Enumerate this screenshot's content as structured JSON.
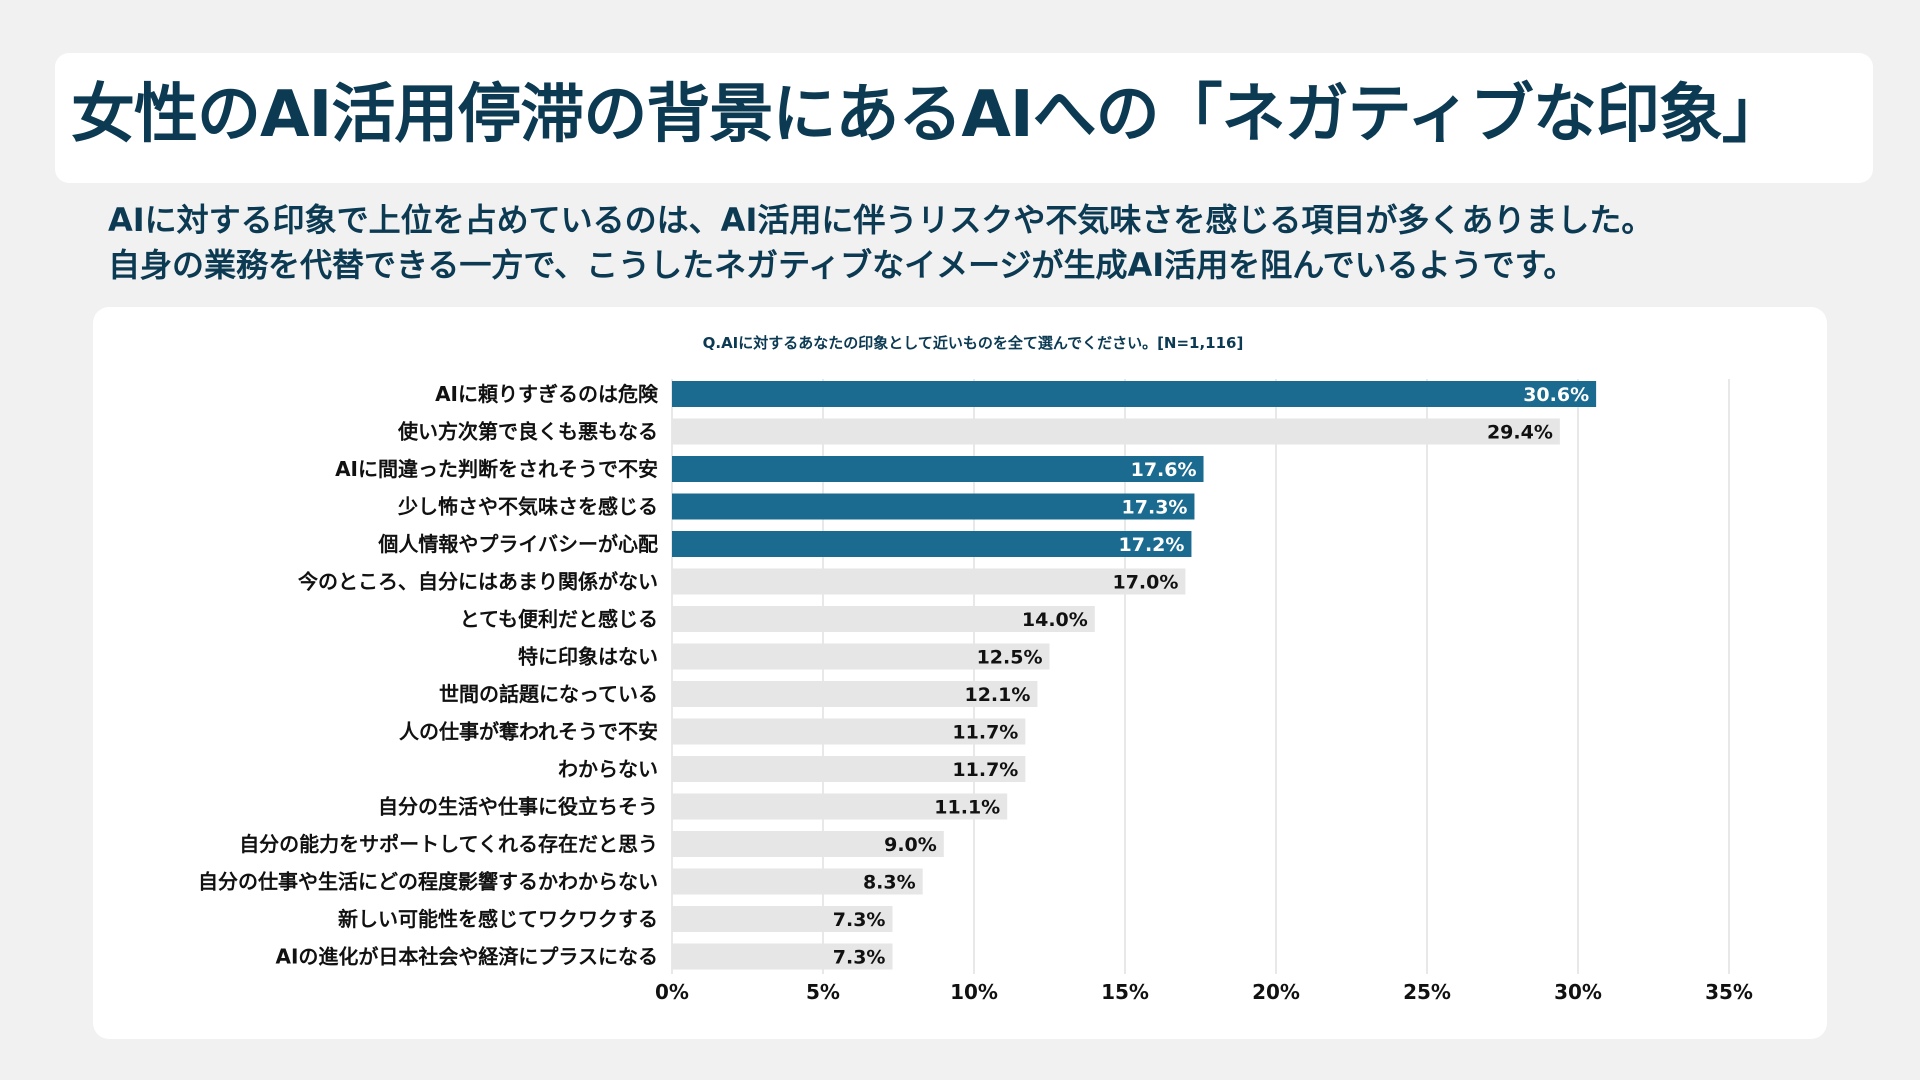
{
  "header": {
    "title": "女性のAI活用停滞の背景にあるAIへの「ネガティブな印象」"
  },
  "subtitle": {
    "line1": "AIに対する印象で上位を占めているのは、AI活用に伴うリスクや不気味さを感じる項目が多くありました。",
    "line2": "自身の業務を代替できる一方で、こうしたネガティブなイメージが生成AI活用を阻んでいるようです。"
  },
  "colors": {
    "title": "#0b3a52",
    "highlight_bar": "#1b6a8f",
    "normal_bar": "#e6e6e6",
    "gridline": "#d9d9d9",
    "page_background": "#f1f1f1",
    "card_background": "#ffffff"
  },
  "chart_data": {
    "type": "bar",
    "orientation": "horizontal",
    "title": "Q.AIに対するあなたの印象として近いものを全て選んでください。[N=1,116]",
    "categories": [
      "AIに頼りすぎるのは危険",
      "使い方次第で良くも悪もなる",
      "AIに間違った判断をされそうで不安",
      "少し怖さや不気味さを感じる",
      "個人情報やプライバシーが心配",
      "今のところ、自分にはあまり関係がない",
      "とても便利だと感じる",
      "特に印象はない",
      "世間の話題になっている",
      "人の仕事が奪われそうで不安",
      "わからない",
      "自分の生活や仕事に役立ちそう",
      "自分の能力をサポートしてくれる存在だと思う",
      "自分の仕事や生活にどの程度影響するかわからない",
      "新しい可能性を感じてワクワクする",
      "AIの進化が日本社会や経済にプラスになる"
    ],
    "values": [
      30.6,
      29.4,
      17.6,
      17.3,
      17.2,
      17.0,
      14.0,
      12.5,
      12.1,
      11.7,
      11.7,
      11.1,
      9.0,
      8.3,
      7.3,
      7.3
    ],
    "value_labels": [
      "30.6%",
      "29.4%",
      "17.6%",
      "17.3%",
      "17.2%",
      "17.0%",
      "14.0%",
      "12.5%",
      "12.1%",
      "11.7%",
      "11.7%",
      "11.1%",
      "9.0%",
      "8.3%",
      "7.3%",
      "7.3%"
    ],
    "highlighted": [
      true,
      false,
      true,
      true,
      true,
      false,
      false,
      false,
      false,
      false,
      false,
      false,
      false,
      false,
      false,
      false
    ],
    "xlim": [
      0,
      35
    ],
    "xticks": [
      0,
      5,
      10,
      15,
      20,
      25,
      30,
      35
    ],
    "xtick_labels": [
      "0%",
      "5%",
      "10%",
      "15%",
      "20%",
      "25%",
      "30%",
      "35%"
    ],
    "grid": "vertical"
  }
}
